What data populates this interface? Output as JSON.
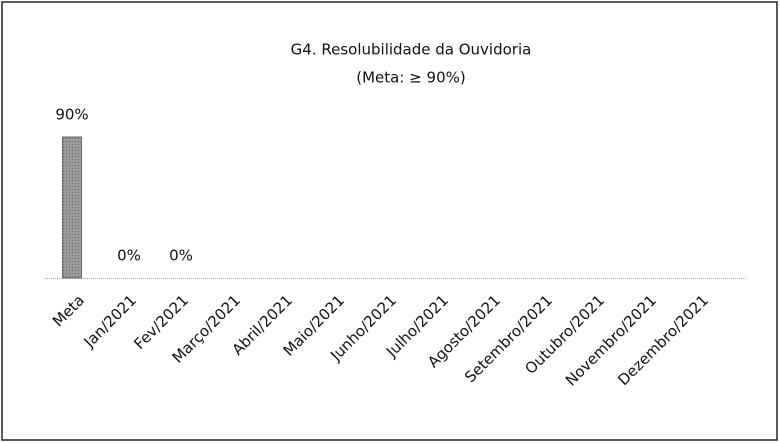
{
  "chart_data": {
    "type": "bar",
    "title": "G4. Resolubilidade da Ouvidoria",
    "subtitle": "(Meta: ≥ 90%)",
    "categories": [
      "Meta",
      "Jan/2021",
      "Fev/2021",
      "Março/2021",
      "Abril/2021",
      "Maio/2021",
      "Junho/2021",
      "Julho/2021",
      "Agosto/2021",
      "Setembro/2021",
      "Outubro/2021",
      "Novembro/2021",
      "Dezembro/2021"
    ],
    "values": [
      90,
      0,
      0,
      null,
      null,
      null,
      null,
      null,
      null,
      null,
      null,
      null,
      null
    ],
    "value_labels": [
      "90%",
      "0%",
      "0%",
      null,
      null,
      null,
      null,
      null,
      null,
      null,
      null,
      null,
      null
    ],
    "color": "#9a9a9a"
  }
}
